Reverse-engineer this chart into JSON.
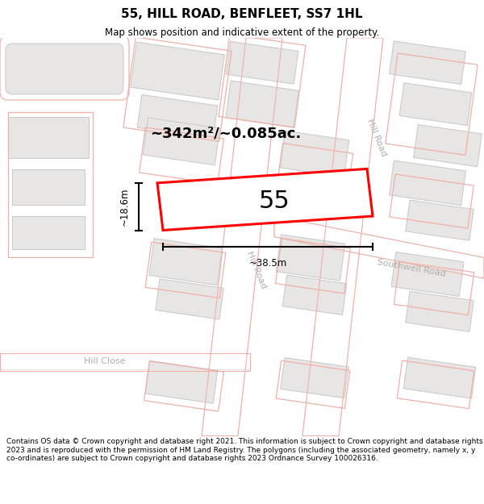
{
  "title": "55, HILL ROAD, BENFLEET, SS7 1HL",
  "subtitle": "Map shows position and indicative extent of the property.",
  "footer": "Contains OS data © Crown copyright and database right 2021. This information is subject to Crown copyright and database rights 2023 and is reproduced with the permission of HM Land Registry. The polygons (including the associated geometry, namely x, y co-ordinates) are subject to Crown copyright and database rights 2023 Ordnance Survey 100026316.",
  "area_label": "~342m²/~0.085ac.",
  "number_label": "55",
  "dim_width": "~38.5m",
  "dim_height": "~18.6m",
  "bg_color": "#f2f0ee",
  "road_fill": "#ffffff",
  "building_fill": "#e8e6e4",
  "building_edge": "#c8c8c8",
  "pink_line": "#f0b0a8",
  "highlight_color": "#ff0000",
  "street_label_color": "#b0aca8",
  "dim_color": "#111111"
}
